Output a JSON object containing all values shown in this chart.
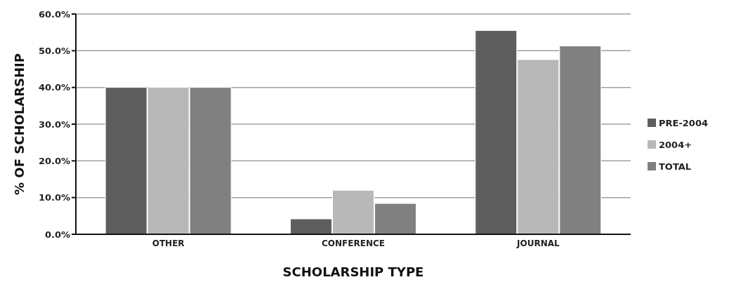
{
  "chart_data": {
    "type": "bar",
    "xlabel": "SCHOLARSHIP TYPE",
    "ylabel": "% OF SCHOLARSHIP",
    "categories": [
      "OTHER",
      "CONFERENCE",
      "JOURNAL"
    ],
    "series": [
      {
        "name": "PRE-2004",
        "color": "#5e5e5e",
        "values": [
          40.0,
          4.2,
          55.5
        ]
      },
      {
        "name": "2004+",
        "color": "#b8b8b8",
        "values": [
          40.0,
          12.0,
          47.6
        ]
      },
      {
        "name": "TOTAL",
        "color": "#808080",
        "values": [
          40.0,
          8.4,
          51.3
        ]
      }
    ],
    "ylim": [
      0,
      60
    ],
    "yticks": [
      {
        "value": 0,
        "label": "0.0%"
      },
      {
        "value": 10,
        "label": "10.0%"
      },
      {
        "value": 20,
        "label": "20.0%"
      },
      {
        "value": 30,
        "label": "30.0%"
      },
      {
        "value": 40,
        "label": "40.0%"
      },
      {
        "value": 50,
        "label": "50.0%"
      },
      {
        "value": 60,
        "label": "60.0%"
      }
    ],
    "grid": "y",
    "legend": "right"
  }
}
